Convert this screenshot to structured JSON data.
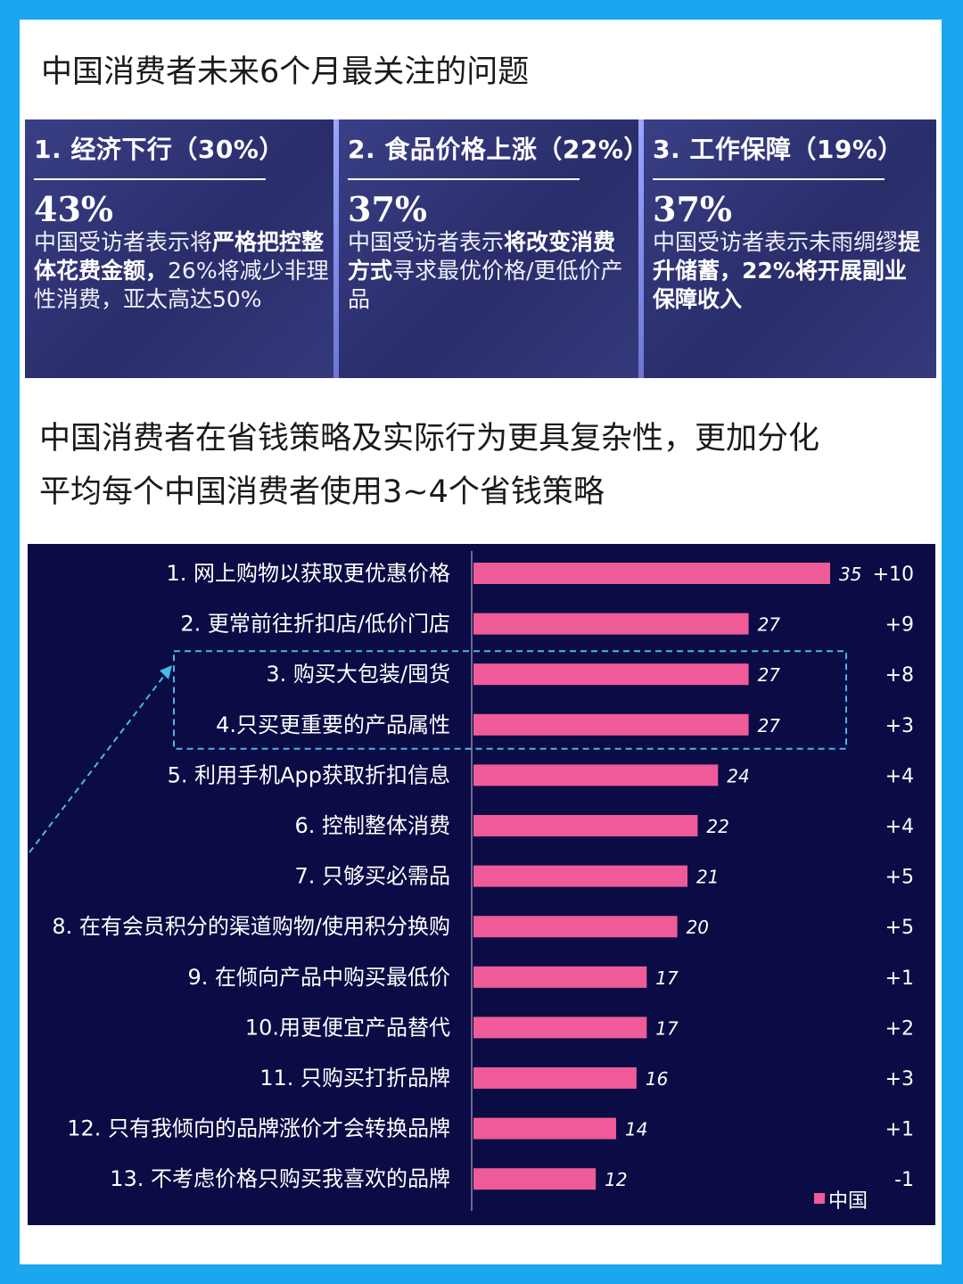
{
  "header": {
    "title": "中国消费者未来6个月最关注的问题"
  },
  "cards": [
    {
      "head": "1. 经济下行（30%）",
      "big": "43%",
      "desc_parts": [
        {
          "t": "中国受访者表示将",
          "b": false
        },
        {
          "t": "严格把控整体花费金额，",
          "b": true
        },
        {
          "t": "26%将减少非理性消费，亚太高达50%",
          "b": false
        }
      ]
    },
    {
      "head": "2. 食品价格上涨（22%）",
      "big": "37%",
      "desc_parts": [
        {
          "t": "中国受访者表示",
          "b": false
        },
        {
          "t": "将改变消费方式",
          "b": true
        },
        {
          "t": "寻求最优价格/更低价产品",
          "b": false
        }
      ]
    },
    {
      "head": "3. 工作保障（19%）",
      "big": "37%",
      "desc_parts": [
        {
          "t": "中国受访者表示未雨绸缪",
          "b": false
        },
        {
          "t": "提升储蓄，22%将开展副业保障收入",
          "b": true
        }
      ]
    }
  ],
  "section2": {
    "line1": "中国消费者在省钱策略及实际行为更具复杂性，更加分化",
    "line2": "平均每个中国消费者使用3~4个省钱策略"
  },
  "chart_data": {
    "type": "bar",
    "orientation": "horizontal",
    "categories": [
      "1. 网上购物以获取更优惠价格",
      "2. 更常前往折扣店/低价门店",
      "3. 购买大包装/囤货",
      "4.只买更重要的产品属性",
      "5. 利用手机App获取折扣信息",
      "6. 控制整体消费",
      "7. 只够买必需品",
      "8. 在有会员积分的渠道购物/使用积分换购",
      "9. 在倾向产品中购买最低价",
      "10.用更便宜产品替代",
      "11. 只购买打折品牌",
      "12. 只有我倾向的品牌涨价才会转换品牌",
      "13. 不考虑价格只购买我喜欢的品牌"
    ],
    "series": [
      {
        "name": "中国",
        "values": [
          35,
          27,
          27,
          27,
          24,
          22,
          21,
          20,
          17,
          17,
          16,
          14,
          12
        ],
        "color": "#ef5b98"
      }
    ],
    "changes": [
      "+10",
      "+9",
      "+8",
      "+3",
      "+4",
      "+4",
      "+5",
      "+5",
      "+1",
      "+2",
      "+3",
      "+1",
      "-1"
    ],
    "highlight_rows": [
      2,
      3
    ],
    "xlim": [
      0,
      35
    ],
    "legend_position": "bottom-right",
    "grid": false
  }
}
